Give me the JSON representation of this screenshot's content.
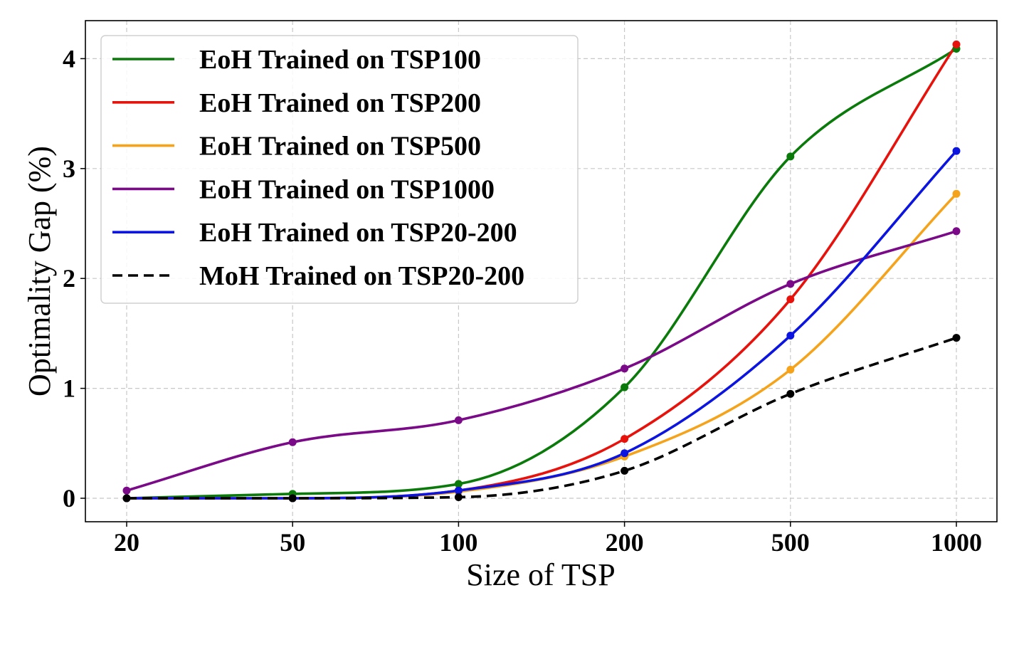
{
  "chart_data": {
    "type": "line",
    "title": "",
    "xlabel": "Size of TSP",
    "ylabel": "Optimality Gap (%)",
    "categories": [
      "20",
      "50",
      "100",
      "200",
      "500",
      "1000"
    ],
    "yticks": [
      "0",
      "1",
      "2",
      "3",
      "4"
    ],
    "ylim": [
      -0.2,
      4.35
    ],
    "grid": true,
    "legend_position": "top-left",
    "series": [
      {
        "name": "EoH Trained on TSP100",
        "color": "#0a7a0a",
        "dash": "solid",
        "values": [
          0.0,
          0.04,
          0.13,
          1.01,
          3.11,
          4.09
        ]
      },
      {
        "name": "EoH Trained on TSP200",
        "color": "#e8120c",
        "dash": "solid",
        "values": [
          0.0,
          0.0,
          0.07,
          0.54,
          1.81,
          4.13
        ]
      },
      {
        "name": "EoH Trained on TSP500",
        "color": "#f5a31a",
        "dash": "solid",
        "values": [
          0.0,
          0.0,
          0.06,
          0.38,
          1.17,
          2.77
        ]
      },
      {
        "name": "EoH Trained on TSP1000",
        "color": "#7a0a87",
        "dash": "solid",
        "values": [
          0.07,
          0.51,
          0.71,
          1.18,
          1.95,
          2.43
        ]
      },
      {
        "name": "EoH Trained on TSP20-200",
        "color": "#0c14e0",
        "dash": "solid",
        "values": [
          0.0,
          0.0,
          0.07,
          0.41,
          1.48,
          3.16
        ]
      },
      {
        "name": "MoH Trained on TSP20-200",
        "color": "#000000",
        "dash": "dashed",
        "values": [
          0.0,
          0.0,
          0.01,
          0.25,
          0.95,
          1.46
        ]
      }
    ]
  }
}
